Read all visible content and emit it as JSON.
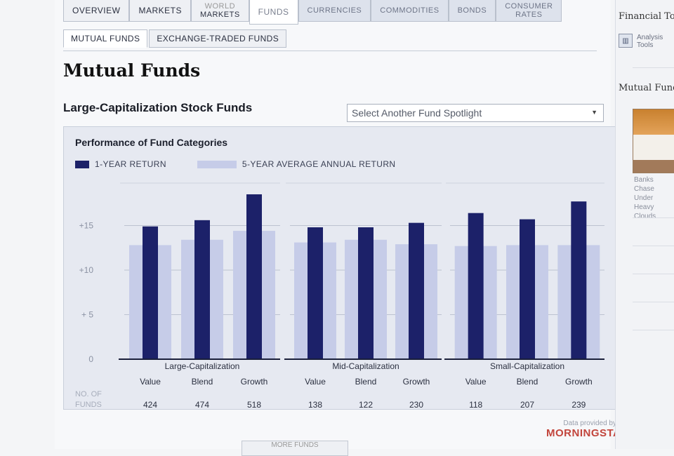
{
  "top_nav": {
    "tabs": [
      {
        "label": "OVERVIEW"
      },
      {
        "label": "MARKETS"
      },
      {
        "label_line1": "WORLD",
        "label_line2": "MARKETS"
      },
      {
        "label": "FUNDS"
      },
      {
        "label": "CURRENCIES"
      },
      {
        "label": "COMMODITIES"
      },
      {
        "label": "BONDS"
      },
      {
        "label_line1": "CONSUMER",
        "label_line2": "RATES"
      }
    ]
  },
  "sub_tabs": [
    "MUTUAL FUNDS",
    "EXCHANGE-TRADED FUNDS"
  ],
  "page_title": "Mutual Funds",
  "section_title": "Large-Capitalization Stock Funds",
  "fund_select": {
    "value": "Select Another Fund Spotlight"
  },
  "chart_data": {
    "type": "bar",
    "title": "Performance of Fund Categories",
    "series": [
      {
        "name": "1-YEAR RETURN",
        "color": "#1c2169",
        "values": [
          14.9,
          15.6,
          18.5,
          14.8,
          14.8,
          15.3,
          16.4,
          15.7,
          17.7
        ]
      },
      {
        "name": "5-YEAR AVERAGE ANNUAL RETURN",
        "color": "#c6cce8",
        "values": [
          12.8,
          13.4,
          14.4,
          13.1,
          13.4,
          12.9,
          12.7,
          12.8,
          12.8
        ]
      }
    ],
    "groups": [
      "Large-Capitalization",
      "Mid-Capitalization",
      "Small-Capitalization"
    ],
    "categories": [
      "Value",
      "Blend",
      "Growth",
      "Value",
      "Blend",
      "Growth",
      "Value",
      "Blend",
      "Growth"
    ],
    "y_ticks": [
      "0",
      "+ 5",
      "+10",
      "+15"
    ],
    "ylim": [
      0,
      18.5
    ],
    "fund_counts_label": [
      "NO. OF",
      "FUNDS"
    ],
    "fund_counts": [
      424,
      474,
      518,
      138,
      122,
      230,
      118,
      207,
      239
    ]
  },
  "sidebar": {
    "heading": "Financial Tools",
    "tool_item": {
      "icon": "chart-icon",
      "label": "Analysis Tools"
    },
    "heading2": "Mutual Funds",
    "caption_lines": [
      "Banks Chase",
      "Under Heavy",
      "Clouds"
    ]
  },
  "credit": {
    "line1": "Data provided by",
    "brand": "MORNINGSTAR"
  },
  "more_button": "MORE FUNDS",
  "colors": {
    "dark_bar": "#1c2169",
    "light_bar": "#c6cce8",
    "panel": "#e6e9f1"
  }
}
